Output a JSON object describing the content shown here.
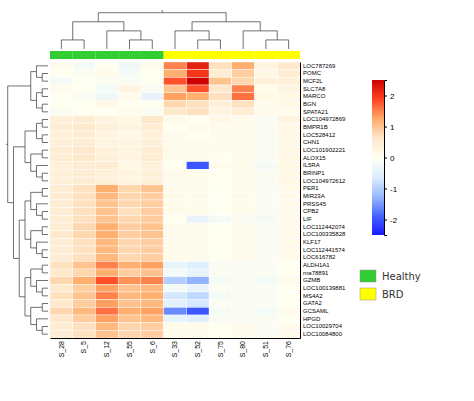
{
  "chart_data": {
    "type": "heatmap",
    "categories": [
      "S_28",
      "S_5",
      "S_12",
      "S_55",
      "S_6",
      "S_33",
      "S_52",
      "S_75",
      "S_80",
      "S_51",
      "S_76"
    ],
    "rows": [
      "LOC787269",
      "POMC",
      "MCF2L",
      "SLC7A8",
      "MARCO",
      "BGN",
      "SPATA21",
      "LOC104972869",
      "BMPR1B",
      "LOC528412",
      "CHN1",
      "LOC101902221",
      "ALOX15",
      "IL5RA",
      "BRINP1",
      "LOC104972612",
      "PER1",
      "MIR23A",
      "PRSS45",
      "CPB2",
      "LIF",
      "LOC112442074",
      "LOC100335828",
      "KLF17",
      "LOC112441574",
      "LOC616782",
      "ALDH1A1",
      "rna78891",
      "GZMB",
      "LOC100139881",
      "MS4A2",
      "GATA2",
      "GCSAML",
      "HPGD",
      "LOC10029704",
      "LOC10084800"
    ],
    "values": [
      [
        0.1,
        -0.2,
        0.0,
        -0.3,
        0.1,
        1.5,
        2.2,
        0.7,
        1.2,
        0.3,
        0.6
      ],
      [
        0.0,
        -0.1,
        0.1,
        -0.2,
        0.0,
        1.2,
        2.0,
        0.5,
        0.9,
        0.2,
        0.5
      ],
      [
        -0.2,
        0.0,
        -0.1,
        -0.1,
        0.0,
        1.8,
        2.5,
        1.0,
        0.8,
        0.4,
        0.4
      ],
      [
        0.1,
        0.0,
        -0.2,
        0.3,
        -0.1,
        1.0,
        1.8,
        0.6,
        1.5,
        0.1,
        0.3
      ],
      [
        0.0,
        -0.1,
        -0.3,
        0.1,
        -0.4,
        1.3,
        1.2,
        0.7,
        1.6,
        0.2,
        0.2
      ],
      [
        0.0,
        0.0,
        0.2,
        0.0,
        0.0,
        0.8,
        0.7,
        0.4,
        0.7,
        0.1,
        0.2
      ],
      [
        -0.1,
        0.0,
        0.0,
        0.1,
        -0.1,
        0.6,
        0.7,
        0.3,
        0.5,
        0.1,
        0.1
      ],
      [
        0.4,
        0.5,
        0.3,
        0.2,
        0.6,
        0.1,
        0.0,
        0.2,
        0.1,
        -0.1,
        0.3
      ],
      [
        0.5,
        0.6,
        0.4,
        0.3,
        0.5,
        0.0,
        0.1,
        0.1,
        0.1,
        -0.1,
        0.2
      ],
      [
        0.4,
        0.5,
        0.3,
        0.2,
        0.4,
        0.1,
        0.0,
        0.1,
        0.1,
        -0.1,
        0.2
      ],
      [
        0.4,
        0.5,
        0.3,
        0.3,
        0.4,
        0.1,
        0.1,
        0.1,
        0.1,
        -0.1,
        0.2
      ],
      [
        0.5,
        0.6,
        0.4,
        0.3,
        0.5,
        0.1,
        0.1,
        0.1,
        0.1,
        -0.1,
        0.2
      ],
      [
        0.5,
        0.6,
        0.4,
        0.3,
        0.5,
        0.1,
        0.1,
        0.0,
        0.1,
        -0.1,
        0.2
      ],
      [
        0.4,
        0.5,
        0.5,
        0.2,
        0.4,
        0.0,
        -2.0,
        0.1,
        0.1,
        -0.2,
        0.2
      ],
      [
        0.4,
        0.5,
        0.4,
        0.3,
        0.4,
        0.1,
        0.1,
        0.0,
        0.1,
        -0.1,
        0.2
      ],
      [
        0.4,
        0.5,
        0.4,
        0.3,
        0.4,
        0.1,
        0.1,
        0.0,
        0.1,
        -0.1,
        0.2
      ],
      [
        0.5,
        0.7,
        1.2,
        0.8,
        1.0,
        0.1,
        0.1,
        0.0,
        0.1,
        -0.1,
        0.1
      ],
      [
        0.5,
        0.7,
        1.1,
        0.8,
        0.9,
        0.1,
        0.1,
        0.0,
        0.1,
        -0.1,
        0.1
      ],
      [
        0.5,
        0.7,
        1.0,
        0.8,
        0.9,
        0.1,
        0.1,
        0.0,
        0.1,
        -0.1,
        0.1
      ],
      [
        0.5,
        0.7,
        1.0,
        0.7,
        0.9,
        0.1,
        0.1,
        0.0,
        0.1,
        -0.1,
        0.1
      ],
      [
        0.5,
        0.7,
        1.0,
        0.8,
        0.9,
        0.0,
        -0.4,
        -0.2,
        -0.1,
        -0.2,
        0.1
      ],
      [
        0.5,
        0.8,
        1.2,
        0.9,
        1.0,
        0.1,
        0.1,
        0.0,
        0.1,
        -0.1,
        0.1
      ],
      [
        0.6,
        0.8,
        1.2,
        0.9,
        1.0,
        0.1,
        0.1,
        0.0,
        0.1,
        -0.1,
        0.1
      ],
      [
        0.5,
        0.7,
        1.1,
        0.8,
        0.9,
        0.1,
        0.1,
        0.0,
        0.1,
        -0.1,
        0.1
      ],
      [
        0.5,
        0.7,
        1.1,
        0.8,
        0.9,
        0.1,
        0.1,
        0.0,
        0.1,
        -0.1,
        0.1
      ],
      [
        0.5,
        0.7,
        1.1,
        0.8,
        0.9,
        0.1,
        0.1,
        0.0,
        0.1,
        -0.1,
        0.1
      ],
      [
        0.7,
        1.0,
        1.5,
        1.2,
        1.3,
        -0.4,
        -0.6,
        -0.1,
        -0.1,
        -0.1,
        0.0
      ],
      [
        0.6,
        0.8,
        1.2,
        0.9,
        1.0,
        -0.2,
        -0.4,
        -0.1,
        -0.1,
        -0.1,
        0.0
      ],
      [
        0.8,
        1.2,
        1.8,
        1.4,
        1.5,
        -1.0,
        -1.3,
        -0.2,
        -0.1,
        -0.2,
        0.1
      ],
      [
        0.6,
        0.9,
        1.3,
        1.0,
        1.1,
        -0.2,
        -0.4,
        -0.1,
        -0.1,
        -0.1,
        0.0
      ],
      [
        0.7,
        1.0,
        1.5,
        1.1,
        1.2,
        -0.7,
        -0.9,
        -0.2,
        -0.1,
        -0.1,
        0.0
      ],
      [
        0.6,
        0.9,
        1.3,
        1.0,
        1.1,
        -0.5,
        -0.7,
        -0.1,
        -0.1,
        -0.1,
        0.0
      ],
      [
        0.8,
        1.1,
        1.6,
        1.2,
        1.3,
        -1.6,
        -2.0,
        -0.2,
        -0.1,
        -0.2,
        0.1
      ],
      [
        0.6,
        0.9,
        1.3,
        1.0,
        1.1,
        -0.4,
        -0.6,
        -0.1,
        -0.1,
        -0.1,
        0.0
      ],
      [
        0.5,
        0.7,
        1.1,
        0.8,
        0.9,
        0.1,
        0.1,
        0.0,
        0.1,
        -0.1,
        0.1
      ],
      [
        0.5,
        0.7,
        1.0,
        0.8,
        0.9,
        0.1,
        0.1,
        0.0,
        0.1,
        -0.1,
        0.1
      ]
    ],
    "color_range": [
      -2.5,
      2.5
    ],
    "colorbar_ticks": [
      -2,
      -1,
      0,
      1,
      2
    ],
    "colorscale": [
      "#1a1aff",
      "#4466ff",
      "#99bbff",
      "#ddeeff",
      "#fffff0",
      "#ffe8cc",
      "#ffaa66",
      "#ff4422",
      "#cc0000"
    ],
    "sample_groups": [
      0,
      0,
      0,
      0,
      0,
      1,
      1,
      1,
      1,
      1,
      1
    ],
    "groups": [
      {
        "name": "Healthy",
        "color": "#32CD32"
      },
      {
        "name": "BRD",
        "color": "#FFFF00"
      }
    ]
  }
}
